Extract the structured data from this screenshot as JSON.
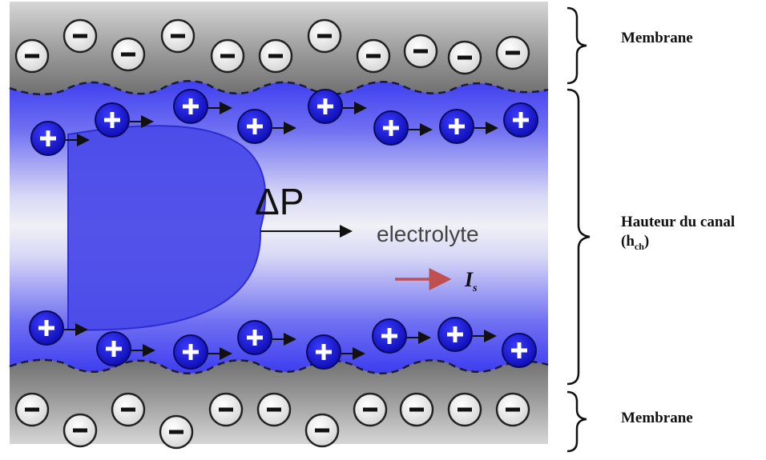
{
  "diagram": {
    "pressure_label": "ΔP",
    "electrolyte_label": "electrolyte",
    "current_label": "I",
    "current_subscript": "s",
    "anion_symbol": "−",
    "cation_symbol": "+"
  },
  "labels": {
    "membrane_top": "Membrane",
    "channel_height": "Hauteur du canal",
    "channel_height_symbol_open": "(h",
    "channel_height_symbol_sub": "ch",
    "channel_height_symbol_close": ")",
    "membrane_bottom": "Membrane"
  },
  "colors": {
    "membrane_gray": "#8a8a8a",
    "channel_blue": "#3a3af0",
    "cation_blue": "#1a1ad8",
    "flow_profile": "#4b4bea",
    "current_arrow": "#c05050"
  }
}
